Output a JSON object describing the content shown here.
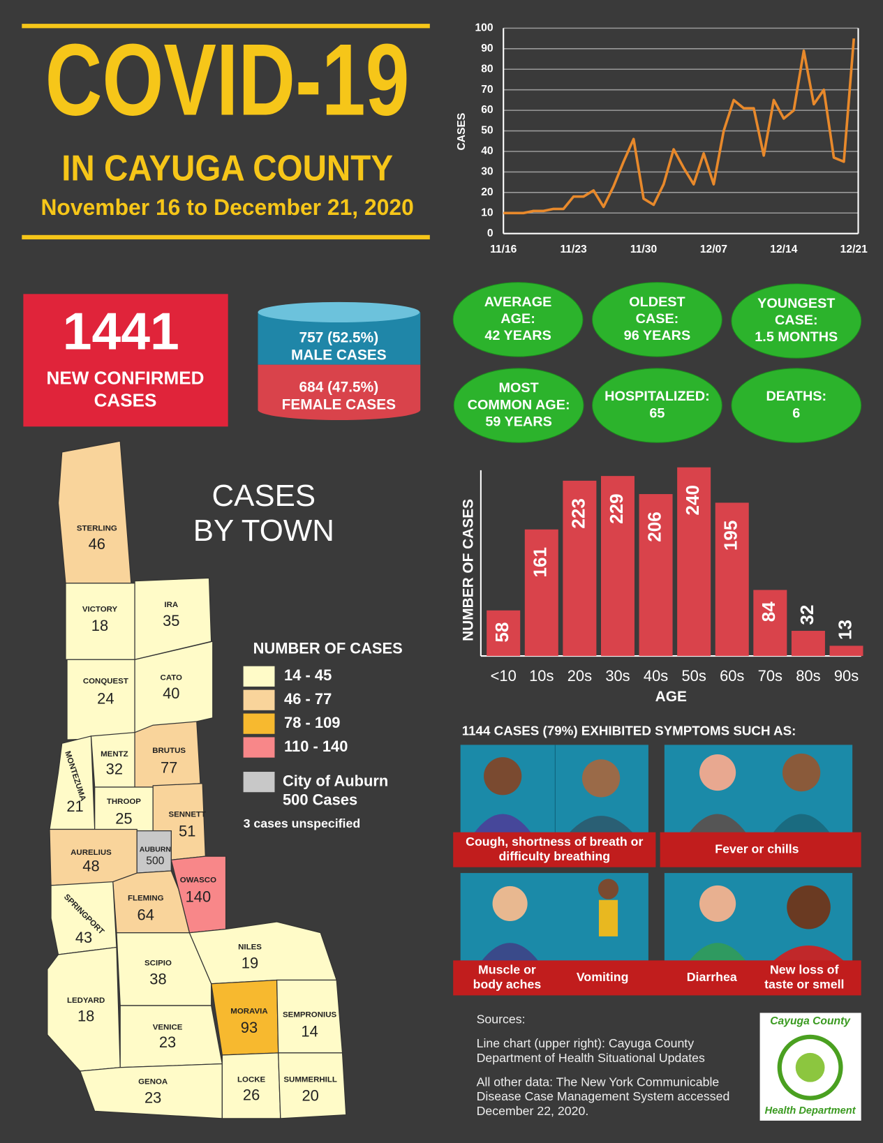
{
  "header": {
    "title": "COVID-19",
    "subtitle": "IN CAYUGA COUNTY",
    "dates": "November 16 to December 21, 2020"
  },
  "chart_data": [
    {
      "type": "line",
      "y_label": "CASES",
      "color": "#e8892b",
      "grid": true,
      "categories": [
        "11/16",
        null,
        null,
        null,
        null,
        null,
        null,
        "11/23",
        null,
        null,
        null,
        null,
        null,
        null,
        "11/30",
        null,
        null,
        null,
        null,
        null,
        null,
        "12/07",
        null,
        null,
        null,
        null,
        null,
        null,
        "12/14",
        null,
        null,
        null,
        null,
        null,
        null,
        "12/21"
      ],
      "values": [
        10,
        10,
        10,
        11,
        11,
        12,
        12,
        18,
        18,
        21,
        13,
        23,
        35,
        46,
        17,
        14,
        24,
        41,
        32,
        24,
        39,
        24,
        50,
        65,
        61,
        61,
        38,
        65,
        56,
        60,
        89,
        63,
        70,
        37,
        35,
        95
      ],
      "ylim": [
        0,
        100
      ],
      "yticks": [
        0,
        10,
        20,
        30,
        40,
        50,
        60,
        70,
        80,
        90,
        100
      ]
    },
    {
      "type": "bar",
      "y_label": "NUMBER OF CASES",
      "x_label": "AGE",
      "color": "#d9434b",
      "categories": [
        "<10",
        "10s",
        "20s",
        "30s",
        "40s",
        "50s",
        "60s",
        "70s",
        "80s",
        "90s"
      ],
      "values": [
        58,
        161,
        223,
        229,
        206,
        240,
        195,
        84,
        32,
        13
      ]
    }
  ],
  "stats": {
    "total": 1441,
    "total_label": [
      "NEW CONFIRMED",
      "CASES"
    ],
    "male": [
      "757 (52.5%)",
      "MALE CASES"
    ],
    "female": [
      "684 (47.5%)",
      "FEMALE CASES"
    ],
    "facts": [
      [
        "AVERAGE",
        "AGE:",
        "42 YEARS"
      ],
      [
        "OLDEST",
        "CASE:",
        "96 YEARS"
      ],
      [
        "YOUNGEST",
        "CASE:",
        "1.5 MONTHS"
      ],
      [
        "MOST",
        "COMMON AGE:",
        "59 YEARS"
      ],
      [
        "HOSPITALIZED:",
        "65"
      ],
      [
        "DEATHS:",
        "6"
      ]
    ]
  },
  "map": {
    "title": [
      "CASES",
      "BY TOWN"
    ],
    "towns": [
      {
        "name": "STERLING",
        "value": 46,
        "color": "#f9d49b"
      },
      {
        "name": "VICTORY",
        "value": 18,
        "color": "#fffbc8"
      },
      {
        "name": "IRA",
        "value": 35,
        "color": "#fffbc8"
      },
      {
        "name": "CONQUEST",
        "value": 24,
        "color": "#fffbc8"
      },
      {
        "name": "CATO",
        "value": 40,
        "color": "#fffbc8"
      },
      {
        "name": "MONTEZUMA",
        "value": 21,
        "color": "#fffbc8"
      },
      {
        "name": "MENTZ",
        "value": 32,
        "color": "#fffbc8"
      },
      {
        "name": "BRUTUS",
        "value": 77,
        "color": "#f9d49b"
      },
      {
        "name": "THROOP",
        "value": 25,
        "color": "#fffbc8"
      },
      {
        "name": "SENNETT",
        "value": 51,
        "color": "#f9d49b"
      },
      {
        "name": "AURELIUS",
        "value": 48,
        "color": "#f9d49b"
      },
      {
        "name": "AUBURN",
        "value": 500,
        "color": "#c8c8c8"
      },
      {
        "name": "OWASCO",
        "value": 140,
        "color": "#f88789"
      },
      {
        "name": "FLEMING",
        "value": 64,
        "color": "#f9d49b"
      },
      {
        "name": "SPRINGPORT",
        "value": 43,
        "color": "#fffbc8"
      },
      {
        "name": "SCIPIO",
        "value": 38,
        "color": "#fffbc8"
      },
      {
        "name": "NILES",
        "value": 19,
        "color": "#fffbc8"
      },
      {
        "name": "MORAVIA",
        "value": 93,
        "color": "#f7b92f"
      },
      {
        "name": "SEMPRONIUS",
        "value": 14,
        "color": "#fffbc8"
      },
      {
        "name": "LEDYARD",
        "value": 18,
        "color": "#fffbc8"
      },
      {
        "name": "VENICE",
        "value": 23,
        "color": "#fffbc8"
      },
      {
        "name": "GENOA",
        "value": 23,
        "color": "#fffbc8"
      },
      {
        "name": "LOCKE",
        "value": 26,
        "color": "#fffbc8"
      },
      {
        "name": "SUMMERHILL",
        "value": 20,
        "color": "#fffbc8"
      }
    ],
    "legend": {
      "title": "NUMBER OF CASES",
      "items": [
        {
          "label": "14 - 45",
          "color": "#fffbc8"
        },
        {
          "label": "46 - 77",
          "color": "#f9d49b"
        },
        {
          "label": "78 - 109",
          "color": "#f7b92f"
        },
        {
          "label": "110 - 140",
          "color": "#f88789"
        }
      ],
      "city": {
        "lines": [
          "City of Auburn",
          "500 Cases"
        ],
        "color": "#c8c8c8"
      },
      "note": "3 cases unspecified"
    }
  },
  "symptoms": {
    "title": "1144 CASES (79%) EXHIBITED SYMPTOMS SUCH AS:",
    "items": [
      [
        "Cough, shortness of breath or",
        "difficulty breathing"
      ],
      [
        "Fever or chills"
      ],
      [
        "Muscle or",
        "body aches"
      ],
      [
        "Vomiting"
      ],
      [
        "Diarrhea"
      ],
      [
        "New  loss of",
        "taste or smell"
      ]
    ]
  },
  "sources": {
    "heading": "Sources:",
    "blocks": [
      [
        "Line chart (upper right): Cayuga County",
        "Department of Health Situational Updates"
      ],
      [
        "All other data: The New York Communicable",
        "Disease Case Management System accessed",
        "December 22, 2020."
      ]
    ]
  },
  "logo": {
    "top": "Cayuga County",
    "bottom": "Health Department"
  }
}
